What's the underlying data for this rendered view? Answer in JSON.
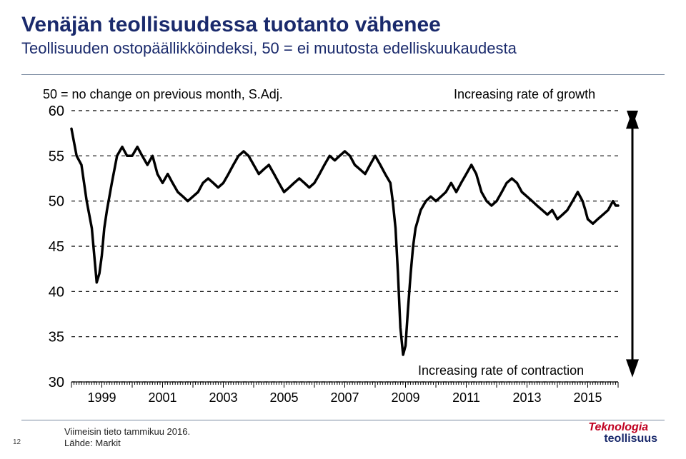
{
  "page_number": "12",
  "title": "Venäjän teollisuudessa tuotanto vähenee",
  "subtitle": "Teollisuuden ostopäällikköindeksi, 50 = ei muutosta edelliskuukaudesta",
  "footer": {
    "line1": "Viimeisin tieto tammikuu 2016.",
    "line2": "Lähde: Markit"
  },
  "logo": {
    "line1": "Teknologia",
    "line2": "teollisuus"
  },
  "chart": {
    "type": "line",
    "note_top": "50 = no change on previous month, S.Adj.",
    "note_right_top": "Increasing rate of growth",
    "note_right_bottom": "Increasing rate of contraction",
    "ylim": [
      30,
      60
    ],
    "yticks": [
      30,
      35,
      40,
      45,
      50,
      55,
      60
    ],
    "xlim": [
      1998,
      2016
    ],
    "xticks": [
      1999,
      2001,
      2003,
      2005,
      2007,
      2009,
      2011,
      2013,
      2015
    ],
    "line_color": "#000000",
    "line_width": 3.5,
    "grid_color": "#000000",
    "grid_dash": "5 5",
    "background": "#ffffff",
    "axis_color": "#000000",
    "label_fontsize": 18,
    "series": [
      [
        1998.0,
        58
      ],
      [
        1998.17,
        55
      ],
      [
        1998.33,
        54
      ],
      [
        1998.5,
        50
      ],
      [
        1998.67,
        47
      ],
      [
        1998.83,
        41
      ],
      [
        1998.92,
        42
      ],
      [
        1999.0,
        44
      ],
      [
        1999.08,
        47
      ],
      [
        1999.17,
        49
      ],
      [
        1999.33,
        52
      ],
      [
        1999.5,
        55
      ],
      [
        1999.67,
        56
      ],
      [
        1999.83,
        55
      ],
      [
        2000.0,
        55
      ],
      [
        2000.17,
        56
      ],
      [
        2000.33,
        55
      ],
      [
        2000.5,
        54
      ],
      [
        2000.67,
        55
      ],
      [
        2000.83,
        53
      ],
      [
        2001.0,
        52
      ],
      [
        2001.17,
        53
      ],
      [
        2001.33,
        52
      ],
      [
        2001.5,
        51
      ],
      [
        2001.67,
        50.5
      ],
      [
        2001.83,
        50
      ],
      [
        2002.0,
        50.5
      ],
      [
        2002.17,
        51
      ],
      [
        2002.33,
        52
      ],
      [
        2002.5,
        52.5
      ],
      [
        2002.67,
        52
      ],
      [
        2002.83,
        51.5
      ],
      [
        2003.0,
        52
      ],
      [
        2003.17,
        53
      ],
      [
        2003.33,
        54
      ],
      [
        2003.5,
        55
      ],
      [
        2003.67,
        55.5
      ],
      [
        2003.83,
        55
      ],
      [
        2004.0,
        54
      ],
      [
        2004.17,
        53
      ],
      [
        2004.33,
        53.5
      ],
      [
        2004.5,
        54
      ],
      [
        2004.67,
        53
      ],
      [
        2004.83,
        52
      ],
      [
        2005.0,
        51
      ],
      [
        2005.17,
        51.5
      ],
      [
        2005.33,
        52
      ],
      [
        2005.5,
        52.5
      ],
      [
        2005.67,
        52
      ],
      [
        2005.83,
        51.5
      ],
      [
        2006.0,
        52
      ],
      [
        2006.17,
        53
      ],
      [
        2006.33,
        54
      ],
      [
        2006.5,
        55
      ],
      [
        2006.67,
        54.5
      ],
      [
        2006.83,
        55
      ],
      [
        2007.0,
        55.5
      ],
      [
        2007.17,
        55
      ],
      [
        2007.33,
        54
      ],
      [
        2007.5,
        53.5
      ],
      [
        2007.67,
        53
      ],
      [
        2007.83,
        54
      ],
      [
        2008.0,
        55
      ],
      [
        2008.17,
        54
      ],
      [
        2008.33,
        53
      ],
      [
        2008.5,
        52
      ],
      [
        2008.58,
        50
      ],
      [
        2008.67,
        47
      ],
      [
        2008.75,
        42
      ],
      [
        2008.83,
        36
      ],
      [
        2008.92,
        33
      ],
      [
        2009.0,
        34
      ],
      [
        2009.08,
        38
      ],
      [
        2009.17,
        42
      ],
      [
        2009.25,
        45
      ],
      [
        2009.33,
        47
      ],
      [
        2009.5,
        49
      ],
      [
        2009.67,
        50
      ],
      [
        2009.83,
        50.5
      ],
      [
        2010.0,
        50
      ],
      [
        2010.17,
        50.5
      ],
      [
        2010.33,
        51
      ],
      [
        2010.5,
        52
      ],
      [
        2010.67,
        51
      ],
      [
        2010.83,
        52
      ],
      [
        2011.0,
        53
      ],
      [
        2011.17,
        54
      ],
      [
        2011.33,
        53
      ],
      [
        2011.5,
        51
      ],
      [
        2011.67,
        50
      ],
      [
        2011.83,
        49.5
      ],
      [
        2012.0,
        50
      ],
      [
        2012.17,
        51
      ],
      [
        2012.33,
        52
      ],
      [
        2012.5,
        52.5
      ],
      [
        2012.67,
        52
      ],
      [
        2012.83,
        51
      ],
      [
        2013.0,
        50.5
      ],
      [
        2013.17,
        50
      ],
      [
        2013.33,
        49.5
      ],
      [
        2013.5,
        49
      ],
      [
        2013.67,
        48.5
      ],
      [
        2013.83,
        49
      ],
      [
        2014.0,
        48
      ],
      [
        2014.17,
        48.5
      ],
      [
        2014.33,
        49
      ],
      [
        2014.5,
        50
      ],
      [
        2014.67,
        51
      ],
      [
        2014.83,
        50
      ],
      [
        2014.92,
        49
      ],
      [
        2015.0,
        48
      ],
      [
        2015.17,
        47.5
      ],
      [
        2015.33,
        48
      ],
      [
        2015.5,
        48.5
      ],
      [
        2015.67,
        49
      ],
      [
        2015.83,
        50
      ],
      [
        2015.92,
        49.5
      ],
      [
        2016.0,
        49.5
      ]
    ]
  }
}
